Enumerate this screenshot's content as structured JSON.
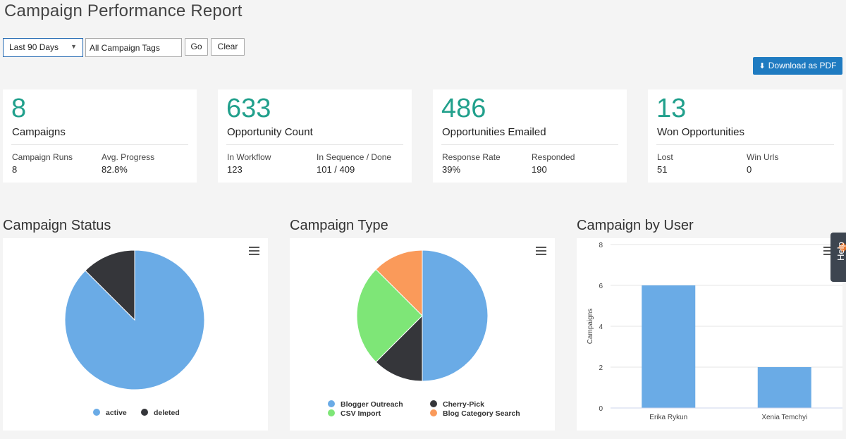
{
  "page": {
    "title": "Campaign Performance Report"
  },
  "filters": {
    "date_range": "Last 90 Days",
    "tags": "All Campaign Tags",
    "go_label": "Go",
    "clear_label": "Clear"
  },
  "toolbar": {
    "download_label": "Download as PDF"
  },
  "stats": [
    {
      "value": "8",
      "label": "Campaigns",
      "sub1_label": "Campaign Runs",
      "sub1_value": "8",
      "sub2_label": "Avg. Progress",
      "sub2_value": "82.8%"
    },
    {
      "value": "633",
      "label": "Opportunity Count",
      "sub1_label": "In Workflow",
      "sub1_value": "123",
      "sub2_label": "In Sequence / Done",
      "sub2_value": "101 / 409"
    },
    {
      "value": "486",
      "label": "Opportunities Emailed",
      "sub1_label": "Response Rate",
      "sub1_value": "39%",
      "sub2_label": "Responded",
      "sub2_value": "190"
    },
    {
      "value": "13",
      "label": "Won Opportunities",
      "sub1_label": "Lost",
      "sub1_value": "51",
      "sub2_label": "Win Urls",
      "sub2_value": "0"
    }
  ],
  "sections": {
    "status_title": "Campaign Status",
    "type_title": "Campaign Type",
    "user_title": "Campaign by User"
  },
  "help": {
    "label": "Help"
  },
  "colors": {
    "accent": "#21a08c",
    "blue": "#6aabe6",
    "dark": "#35363a",
    "green": "#7ee677",
    "orange": "#fa9a5a",
    "button": "#1f7bc1"
  },
  "chart_data": [
    {
      "type": "pie",
      "title": "Campaign Status",
      "labels": [
        "active",
        "deleted"
      ],
      "values": [
        7,
        1
      ],
      "colors": [
        "#6aabe6",
        "#35363a"
      ]
    },
    {
      "type": "pie",
      "title": "Campaign Type",
      "labels": [
        "Blogger Outreach",
        "Cherry-Pick",
        "CSV Import",
        "Blog Category Search"
      ],
      "values": [
        4,
        1,
        2,
        1
      ],
      "colors": [
        "#6aabe6",
        "#35363a",
        "#7ee677",
        "#fa9a5a"
      ]
    },
    {
      "type": "bar",
      "title": "Campaign by User",
      "categories": [
        "Erika Rykun",
        "Xenia Temchyi"
      ],
      "values": [
        6,
        2
      ],
      "ylabel": "Campaigns",
      "ylim": [
        0,
        8
      ],
      "yticks": [
        0,
        2,
        4,
        6,
        8
      ],
      "color": "#6aabe6"
    }
  ]
}
